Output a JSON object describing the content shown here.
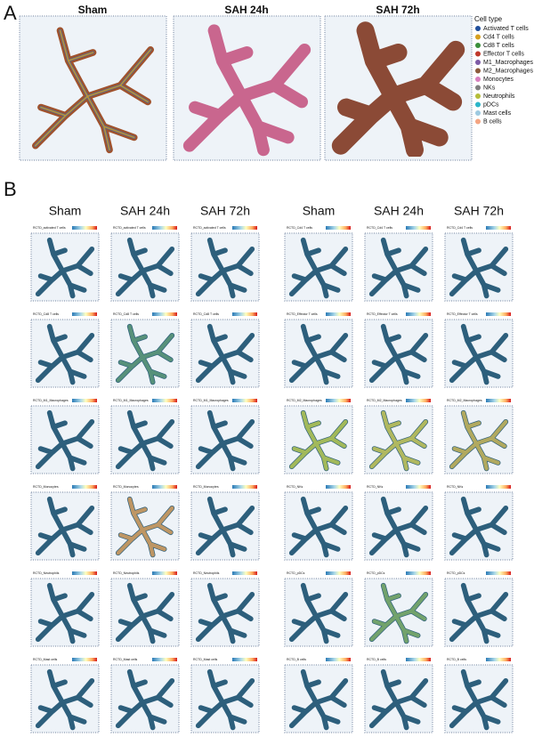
{
  "panel_a": {
    "label": "A",
    "titles": [
      "Sham",
      "SAH 24h",
      "SAH 72h"
    ],
    "legend": {
      "title": "Cell type",
      "items": [
        {
          "name": "Activated T cells",
          "color": "#1f4e9c"
        },
        {
          "name": "Cd4 T cells",
          "color": "#d6a021"
        },
        {
          "name": "Cd8 T cells",
          "color": "#3a8f3a"
        },
        {
          "name": "Effector T cells",
          "color": "#c0392b"
        },
        {
          "name": "M1_Macrophages",
          "color": "#7d5ba6"
        },
        {
          "name": "M2_Macrophages",
          "color": "#8c5a3c"
        },
        {
          "name": "Monocytes",
          "color": "#d87fbf"
        },
        {
          "name": "NKs",
          "color": "#7f7f7f"
        },
        {
          "name": "Neutrophils",
          "color": "#b5bd3a"
        },
        {
          "name": "pDCs",
          "color": "#2bb5c9"
        },
        {
          "name": "Mast cells",
          "color": "#9ecae1"
        },
        {
          "name": "B cells",
          "color": "#f4a582"
        }
      ]
    }
  },
  "panel_b": {
    "label": "B",
    "headers": [
      "Sham",
      "SAH 24h",
      "SAH 72h",
      "Sham",
      "SAH 24h",
      "SAH 72h"
    ],
    "rows": [
      [
        "RCTD_activated T cells",
        "RCTD_Cd4 T cells"
      ],
      [
        "RCTD_Cd8 T cells",
        "RCTD_Effector T cells"
      ],
      [
        "RCTD_M1_Macrophages",
        "RCTD_M2_Macrophages"
      ],
      [
        "RCTD_Monocytes",
        "RCTD_NKs"
      ],
      [
        "RCTD_Neutrophils",
        "RCTD_pDCs"
      ],
      [
        "RCTD_Mast cells",
        "RCTD_B cells"
      ]
    ]
  }
}
